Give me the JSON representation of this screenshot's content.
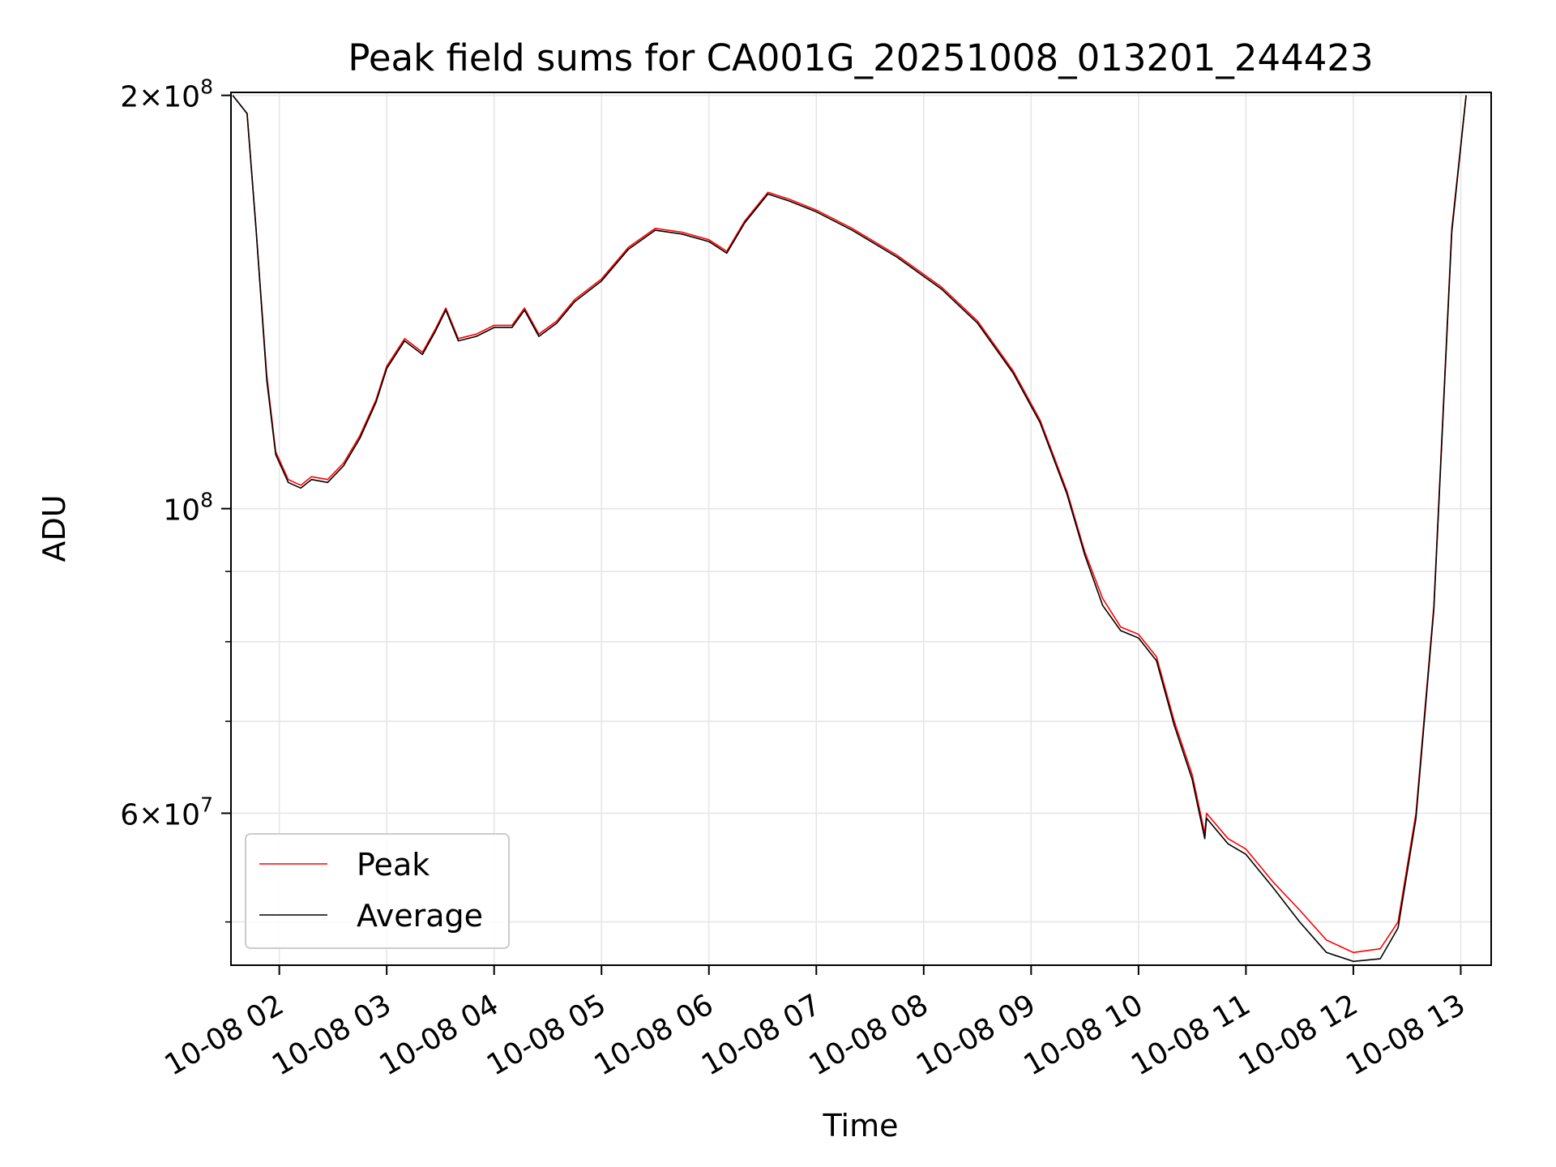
{
  "chart_data": {
    "type": "line",
    "title": "Peak field sums for CA001G_20251008_013201_244423",
    "xlabel": "Time",
    "ylabel": "ADU",
    "y_scale": "log",
    "ylim": [
      46500000,
      201000000
    ],
    "xlim": [
      "2025-10-08 01:33",
      "2025-10-08 13:17"
    ],
    "grid": true,
    "legend_position": "lower-left",
    "x_ticks": [
      {
        "t": "2025-10-08 02:00",
        "label": "10-08 02"
      },
      {
        "t": "2025-10-08 03:00",
        "label": "10-08 03"
      },
      {
        "t": "2025-10-08 04:00",
        "label": "10-08 04"
      },
      {
        "t": "2025-10-08 05:00",
        "label": "10-08 05"
      },
      {
        "t": "2025-10-08 06:00",
        "label": "10-08 06"
      },
      {
        "t": "2025-10-08 07:00",
        "label": "10-08 07"
      },
      {
        "t": "2025-10-08 08:00",
        "label": "10-08 08"
      },
      {
        "t": "2025-10-08 09:00",
        "label": "10-08 09"
      },
      {
        "t": "2025-10-08 10:00",
        "label": "10-08 10"
      },
      {
        "t": "2025-10-08 11:00",
        "label": "10-08 11"
      },
      {
        "t": "2025-10-08 12:00",
        "label": "10-08 12"
      },
      {
        "t": "2025-10-08 13:00",
        "label": "10-08 13"
      }
    ],
    "y_major_ticks": [
      {
        "value": 200000000,
        "mantissa": "2",
        "exp": "8"
      },
      {
        "value": 100000000,
        "mantissa": "",
        "exp": "8"
      },
      {
        "value": 60000000,
        "mantissa": "6",
        "exp": "7"
      }
    ],
    "y_minor_ticks": [
      50000000,
      70000000,
      80000000,
      90000000
    ],
    "series": [
      {
        "name": "Peak",
        "color": "#ff0000",
        "points": [
          [
            "2025-10-08 01:34",
            200000000
          ],
          [
            "2025-10-08 01:42",
            194000000
          ],
          [
            "2025-10-08 01:47",
            160000000
          ],
          [
            "2025-10-08 01:53",
            125000000
          ],
          [
            "2025-10-08 01:58",
            110000000
          ],
          [
            "2025-10-08 02:05",
            105000000
          ],
          [
            "2025-10-08 02:12",
            104000000
          ],
          [
            "2025-10-08 02:18",
            105500000
          ],
          [
            "2025-10-08 02:27",
            105000000
          ],
          [
            "2025-10-08 02:36",
            108000000
          ],
          [
            "2025-10-08 02:45",
            113000000
          ],
          [
            "2025-10-08 02:54",
            120000000
          ],
          [
            "2025-10-08 03:00",
            127000000
          ],
          [
            "2025-10-08 03:10",
            133000000
          ],
          [
            "2025-10-08 03:20",
            130000000
          ],
          [
            "2025-10-08 03:27",
            135000000
          ],
          [
            "2025-10-08 03:33",
            140000000
          ],
          [
            "2025-10-08 03:40",
            133000000
          ],
          [
            "2025-10-08 03:50",
            134000000
          ],
          [
            "2025-10-08 04:00",
            136000000
          ],
          [
            "2025-10-08 04:10",
            136000000
          ],
          [
            "2025-10-08 04:17",
            140000000
          ],
          [
            "2025-10-08 04:25",
            134000000
          ],
          [
            "2025-10-08 04:35",
            137000000
          ],
          [
            "2025-10-08 04:45",
            142000000
          ],
          [
            "2025-10-08 05:00",
            147000000
          ],
          [
            "2025-10-08 05:15",
            155000000
          ],
          [
            "2025-10-08 05:30",
            160000000
          ],
          [
            "2025-10-08 05:45",
            159000000
          ],
          [
            "2025-10-08 06:00",
            157000000
          ],
          [
            "2025-10-08 06:10",
            154000000
          ],
          [
            "2025-10-08 06:20",
            162000000
          ],
          [
            "2025-10-08 06:33",
            170000000
          ],
          [
            "2025-10-08 06:45",
            168000000
          ],
          [
            "2025-10-08 07:00",
            165000000
          ],
          [
            "2025-10-08 07:20",
            160000000
          ],
          [
            "2025-10-08 07:45",
            153000000
          ],
          [
            "2025-10-08 08:10",
            145000000
          ],
          [
            "2025-10-08 08:30",
            137000000
          ],
          [
            "2025-10-08 08:50",
            126000000
          ],
          [
            "2025-10-08 09:05",
            116000000
          ],
          [
            "2025-10-08 09:20",
            103000000
          ],
          [
            "2025-10-08 09:30",
            93000000
          ],
          [
            "2025-10-08 09:40",
            86000000
          ],
          [
            "2025-10-08 09:50",
            82000000
          ],
          [
            "2025-10-08 10:00",
            81000000
          ],
          [
            "2025-10-08 10:10",
            78000000
          ],
          [
            "2025-10-08 10:20",
            70000000
          ],
          [
            "2025-10-08 10:30",
            64000000
          ],
          [
            "2025-10-08 10:37",
            58000000
          ],
          [
            "2025-10-08 10:38",
            60000000
          ],
          [
            "2025-10-08 10:50",
            57500000
          ],
          [
            "2025-10-08 11:00",
            56500000
          ],
          [
            "2025-10-08 11:15",
            53500000
          ],
          [
            "2025-10-08 11:30",
            51000000
          ],
          [
            "2025-10-08 11:45",
            48500000
          ],
          [
            "2025-10-08 12:00",
            47500000
          ],
          [
            "2025-10-08 12:15",
            47800000
          ],
          [
            "2025-10-08 12:25",
            50000000
          ],
          [
            "2025-10-08 12:35",
            60000000
          ],
          [
            "2025-10-08 12:45",
            85000000
          ],
          [
            "2025-10-08 12:55",
            160000000
          ],
          [
            "2025-10-08 13:03",
            200000000
          ]
        ]
      },
      {
        "name": "Average",
        "color": "#000000",
        "points": [
          [
            "2025-10-08 01:34",
            200000000
          ],
          [
            "2025-10-08 01:42",
            194000000
          ],
          [
            "2025-10-08 01:47",
            160000000
          ],
          [
            "2025-10-08 01:53",
            124000000
          ],
          [
            "2025-10-08 01:58",
            109500000
          ],
          [
            "2025-10-08 02:05",
            104500000
          ],
          [
            "2025-10-08 02:12",
            103500000
          ],
          [
            "2025-10-08 02:18",
            105000000
          ],
          [
            "2025-10-08 02:27",
            104500000
          ],
          [
            "2025-10-08 02:36",
            107500000
          ],
          [
            "2025-10-08 02:45",
            112500000
          ],
          [
            "2025-10-08 02:54",
            119500000
          ],
          [
            "2025-10-08 03:00",
            126500000
          ],
          [
            "2025-10-08 03:10",
            132500000
          ],
          [
            "2025-10-08 03:20",
            129500000
          ],
          [
            "2025-10-08 03:27",
            134500000
          ],
          [
            "2025-10-08 03:33",
            139500000
          ],
          [
            "2025-10-08 03:40",
            132500000
          ],
          [
            "2025-10-08 03:50",
            133500000
          ],
          [
            "2025-10-08 04:00",
            135500000
          ],
          [
            "2025-10-08 04:10",
            135500000
          ],
          [
            "2025-10-08 04:17",
            139500000
          ],
          [
            "2025-10-08 04:25",
            133500000
          ],
          [
            "2025-10-08 04:35",
            136500000
          ],
          [
            "2025-10-08 04:45",
            141500000
          ],
          [
            "2025-10-08 05:00",
            146500000
          ],
          [
            "2025-10-08 05:15",
            154500000
          ],
          [
            "2025-10-08 05:30",
            159500000
          ],
          [
            "2025-10-08 05:45",
            158500000
          ],
          [
            "2025-10-08 06:00",
            156500000
          ],
          [
            "2025-10-08 06:10",
            153500000
          ],
          [
            "2025-10-08 06:20",
            161500000
          ],
          [
            "2025-10-08 06:33",
            169500000
          ],
          [
            "2025-10-08 06:45",
            167500000
          ],
          [
            "2025-10-08 07:00",
            164500000
          ],
          [
            "2025-10-08 07:20",
            159500000
          ],
          [
            "2025-10-08 07:45",
            152500000
          ],
          [
            "2025-10-08 08:10",
            144500000
          ],
          [
            "2025-10-08 08:30",
            136500000
          ],
          [
            "2025-10-08 08:50",
            125500000
          ],
          [
            "2025-10-08 09:05",
            115500000
          ],
          [
            "2025-10-08 09:20",
            102500000
          ],
          [
            "2025-10-08 09:30",
            92500000
          ],
          [
            "2025-10-08 09:40",
            85000000
          ],
          [
            "2025-10-08 09:50",
            81500000
          ],
          [
            "2025-10-08 10:00",
            80500000
          ],
          [
            "2025-10-08 10:10",
            77500000
          ],
          [
            "2025-10-08 10:20",
            69500000
          ],
          [
            "2025-10-08 10:30",
            63500000
          ],
          [
            "2025-10-08 10:37",
            57500000
          ],
          [
            "2025-10-08 10:38",
            59500000
          ],
          [
            "2025-10-08 10:50",
            57000000
          ],
          [
            "2025-10-08 11:00",
            56000000
          ],
          [
            "2025-10-08 11:15",
            53000000
          ],
          [
            "2025-10-08 11:30",
            50000000
          ],
          [
            "2025-10-08 11:45",
            47500000
          ],
          [
            "2025-10-08 12:00",
            46800000
          ],
          [
            "2025-10-08 12:15",
            47000000
          ],
          [
            "2025-10-08 12:25",
            49500000
          ],
          [
            "2025-10-08 12:35",
            59500000
          ],
          [
            "2025-10-08 12:45",
            84500000
          ],
          [
            "2025-10-08 12:55",
            159000000
          ],
          [
            "2025-10-08 13:03",
            200000000
          ]
        ]
      }
    ]
  }
}
